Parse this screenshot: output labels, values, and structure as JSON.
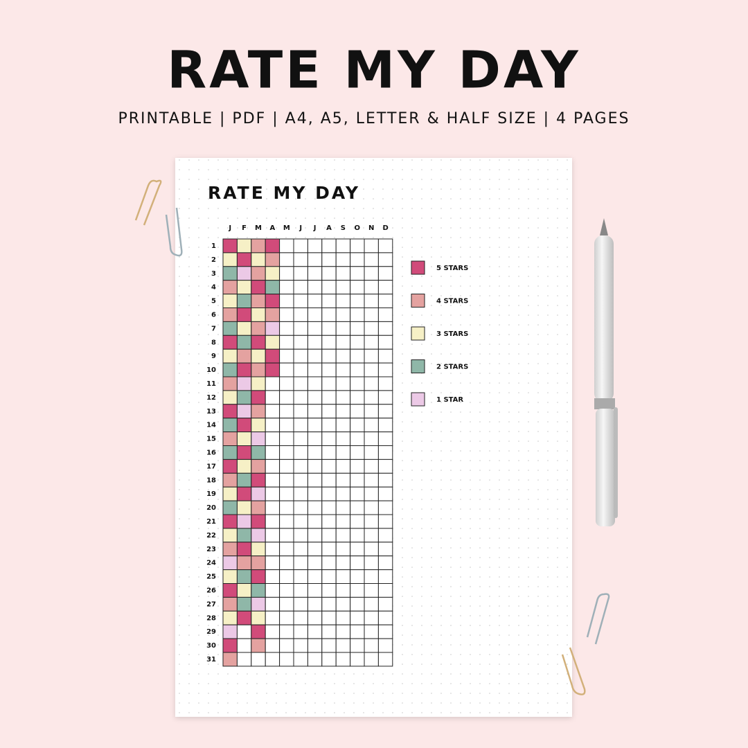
{
  "header": {
    "title": "RATE MY DAY",
    "subtitle": "PRINTABLE | PDF | A4, A5, LETTER & HALF SIZE | 4 PAGES"
  },
  "sheet": {
    "title": "RATE MY DAY",
    "months": [
      "J",
      "F",
      "M",
      "A",
      "M",
      "J",
      "J",
      "A",
      "S",
      "O",
      "N",
      "D"
    ],
    "days": [
      "1",
      "2",
      "3",
      "4",
      "5",
      "6",
      "7",
      "8",
      "9",
      "10",
      "11",
      "12",
      "13",
      "14",
      "15",
      "16",
      "17",
      "18",
      "19",
      "20",
      "21",
      "22",
      "23",
      "24",
      "25",
      "26",
      "27",
      "28",
      "29",
      "30",
      "31"
    ],
    "legend": [
      {
        "label": "5 STARS",
        "stars": 5,
        "color": "#d14b7a"
      },
      {
        "label": "4 STARS",
        "stars": 4,
        "color": "#e4a2a0"
      },
      {
        "label": "3 STARS",
        "stars": 3,
        "color": "#f6f0c6"
      },
      {
        "label": "2 STARS",
        "stars": 2,
        "color": "#8fb7a8"
      },
      {
        "label": "1 STAR",
        "stars": 1,
        "color": "#ecc9e6"
      }
    ],
    "ratings": [
      [
        5,
        3,
        2,
        4,
        3,
        4,
        2,
        5,
        3,
        2,
        4,
        3,
        5,
        2,
        4,
        2,
        5,
        4,
        3,
        2,
        5,
        3,
        4,
        1,
        3,
        5,
        4,
        3,
        1,
        5,
        4
      ],
      [
        3,
        5,
        1,
        3,
        2,
        5,
        3,
        2,
        4,
        5,
        1,
        2,
        1,
        5,
        3,
        5,
        3,
        2,
        5,
        3,
        1,
        2,
        5,
        4,
        2,
        3,
        2,
        5,
        null,
        null,
        null
      ],
      [
        4,
        3,
        4,
        5,
        4,
        3,
        4,
        5,
        3,
        4,
        3,
        5,
        4,
        3,
        1,
        2,
        4,
        5,
        1,
        4,
        5,
        1,
        3,
        4,
        5,
        2,
        1,
        3,
        5,
        4,
        null
      ],
      [
        5,
        4,
        3,
        2,
        5,
        4,
        1,
        3,
        5,
        5,
        null,
        null,
        null,
        null,
        null,
        null,
        null,
        null,
        null,
        null,
        null,
        null,
        null,
        null,
        null,
        null,
        null,
        null,
        null,
        null,
        null
      ]
    ]
  }
}
